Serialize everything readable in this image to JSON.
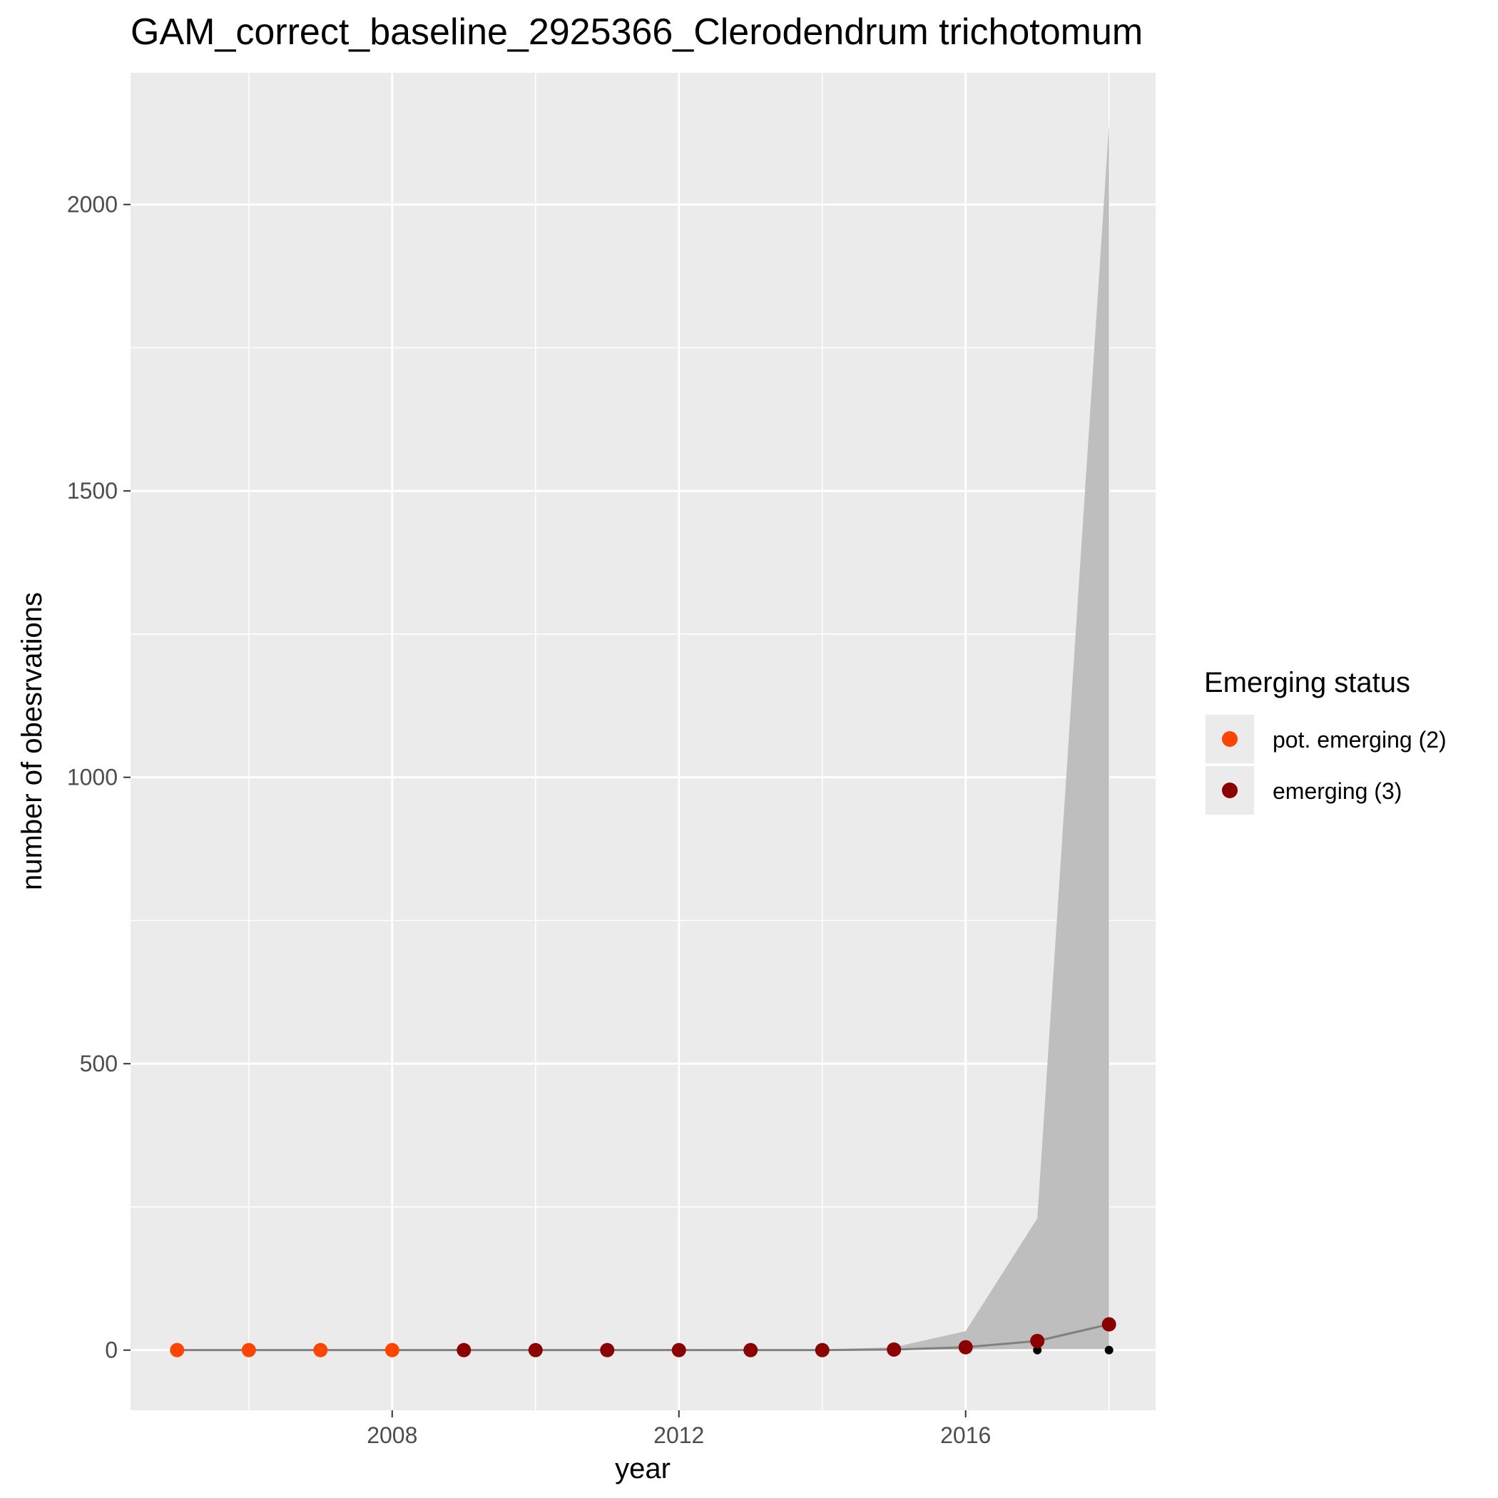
{
  "chart_data": {
    "type": "line",
    "title": "GAM_correct_baseline_2925366_Clerodendrum trichotomum",
    "xlabel": "year",
    "ylabel": "number of obesrvations",
    "xlim": [
      2004.35,
      2018.65
    ],
    "ylim": [
      -105,
      2230
    ],
    "x_ticks": [
      2008,
      2012,
      2016
    ],
    "x_minor_ticks": [
      2006,
      2010,
      2014,
      2018
    ],
    "y_ticks": [
      0,
      500,
      1000,
      1500,
      2000
    ],
    "y_minor_ticks": [
      250,
      750,
      1250,
      1750
    ],
    "grid": true,
    "legend": {
      "title": "Emerging status",
      "position": "right",
      "entries": [
        {
          "label": "pot. emerging (2)",
          "color": "#ff4500"
        },
        {
          "label": "emerging (3)",
          "color": "#8b0000"
        }
      ]
    },
    "colors": {
      "panel_background": "#ebebeb",
      "grid_line": "#ffffff",
      "ribbon": "#bebebe",
      "fit_line": "#808080",
      "observed_point": "#000000"
    },
    "series": [
      {
        "kind": "ribbon",
        "x": [
          2005,
          2006,
          2007,
          2008,
          2009,
          2010,
          2011,
          2012,
          2013,
          2014,
          2015,
          2016,
          2017,
          2018
        ],
        "lower": [
          0,
          0,
          0,
          0,
          0,
          0,
          0,
          0,
          0,
          0,
          0,
          1,
          2,
          2
        ],
        "upper": [
          0,
          0,
          0,
          0,
          0,
          0,
          0,
          0,
          0,
          1,
          5,
          33,
          230,
          2140
        ]
      },
      {
        "kind": "line",
        "x": [
          2005,
          2006,
          2007,
          2008,
          2009,
          2010,
          2011,
          2012,
          2013,
          2014,
          2015,
          2016,
          2017,
          2018
        ],
        "y": [
          0,
          0,
          0,
          0,
          0,
          0,
          0,
          0,
          0,
          0,
          1,
          5,
          16,
          45
        ]
      },
      {
        "kind": "points",
        "x": [
          2017,
          2018
        ],
        "y": [
          0,
          0
        ]
      },
      {
        "kind": "status-points",
        "x": [
          2005,
          2006,
          2007,
          2008,
          2009,
          2010,
          2011,
          2012,
          2013,
          2014,
          2015,
          2016,
          2017,
          2018
        ],
        "y": [
          0,
          0,
          0,
          0,
          0,
          0,
          0,
          0,
          0,
          0,
          1,
          5,
          16,
          45
        ],
        "status": [
          0,
          0,
          0,
          0,
          1,
          1,
          1,
          1,
          1,
          1,
          1,
          1,
          1,
          1
        ]
      }
    ]
  }
}
